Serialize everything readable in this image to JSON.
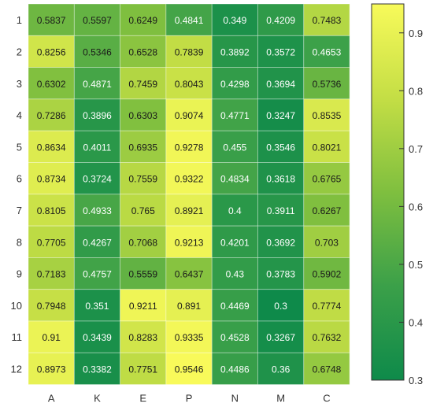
{
  "chart_data": {
    "type": "heatmap",
    "columns": [
      "A",
      "K",
      "E",
      "P",
      "N",
      "M",
      "C"
    ],
    "rows": [
      "1",
      "2",
      "3",
      "4",
      "5",
      "6",
      "7",
      "8",
      "9",
      "10",
      "11",
      "12"
    ],
    "values": [
      [
        0.5837,
        0.5597,
        0.6249,
        0.4841,
        0.349,
        0.4209,
        0.7483
      ],
      [
        0.8256,
        0.5346,
        0.6528,
        0.7839,
        0.3892,
        0.3572,
        0.4653
      ],
      [
        0.6302,
        0.4871,
        0.7459,
        0.8043,
        0.4298,
        0.3694,
        0.5736
      ],
      [
        0.7286,
        0.3896,
        0.6303,
        0.9074,
        0.4771,
        0.3247,
        0.8535
      ],
      [
        0.8634,
        0.4011,
        0.6935,
        0.9278,
        0.455,
        0.3546,
        0.8021
      ],
      [
        0.8734,
        0.3724,
        0.7559,
        0.9322,
        0.4834,
        0.3618,
        0.6765
      ],
      [
        0.8105,
        0.4933,
        0.765,
        0.8921,
        0.4,
        0.3911,
        0.6267
      ],
      [
        0.7705,
        0.4267,
        0.7068,
        0.9213,
        0.4201,
        0.3692,
        0.703
      ],
      [
        0.7183,
        0.4757,
        0.5559,
        0.6437,
        0.43,
        0.3783,
        0.5902
      ],
      [
        0.7948,
        0.351,
        0.9211,
        0.891,
        0.4469,
        0.3,
        0.7774
      ],
      [
        0.91,
        0.3439,
        0.8283,
        0.9335,
        0.4528,
        0.3267,
        0.7632
      ],
      [
        0.8973,
        0.3382,
        0.7751,
        0.9546,
        0.4486,
        0.36,
        0.6748
      ]
    ],
    "colorbar": {
      "min": 0.3,
      "max": 0.95,
      "ticks": [
        0.3,
        0.4,
        0.5,
        0.6,
        0.7,
        0.8,
        0.9
      ],
      "colormap": [
        "#0e8a4a",
        "#3ba049",
        "#7fbf3f",
        "#c4de45",
        "#f8fa5a"
      ]
    },
    "title": "",
    "xlabel": "",
    "ylabel": "",
    "grid": false
  }
}
